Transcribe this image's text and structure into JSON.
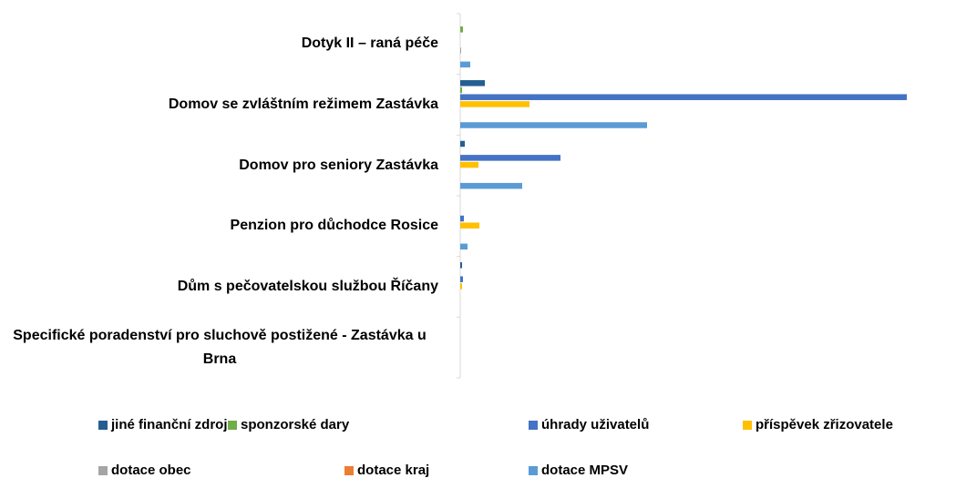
{
  "chart_data": {
    "type": "hbar",
    "categories": [
      "Dotyk II – raná péče",
      "Domov se zvláštním režimem Zastávka",
      "Domov pro seniory Zastávka",
      "Penzion pro důchodce Rosice",
      "Dům s pečovatelskou službou Říčany",
      "Specifické poradenství pro sluchově postižené - Zastávka u Brna"
    ],
    "series": [
      {
        "name": "jiné finanční zdroje",
        "color": "#255e91",
        "values": [
          0,
          27,
          5,
          0,
          2,
          0
        ]
      },
      {
        "name": "sponzorské dary",
        "color": "#70ad47",
        "values": [
          3,
          2,
          0,
          0,
          0,
          0
        ]
      },
      {
        "name": "úhrady uživatelů",
        "color": "#4472c4",
        "values": [
          0,
          490,
          110,
          4,
          3,
          0
        ]
      },
      {
        "name": "příspěvek zřizovatele",
        "color": "#ffc000",
        "values": [
          0,
          76,
          20,
          21,
          2,
          0
        ]
      },
      {
        "name": "dotace obec",
        "color": "#a5a5a5",
        "values": [
          1,
          0,
          0,
          0,
          0,
          0
        ]
      },
      {
        "name": "dotace kraj",
        "color": "#ed7d31",
        "values": [
          0,
          0,
          0,
          0,
          0,
          0
        ]
      },
      {
        "name": "dotace MPSV",
        "color": "#5b9bd5",
        "values": [
          11,
          205,
          68,
          8,
          0,
          0
        ]
      }
    ],
    "xlim": [
      0,
      490
    ]
  }
}
